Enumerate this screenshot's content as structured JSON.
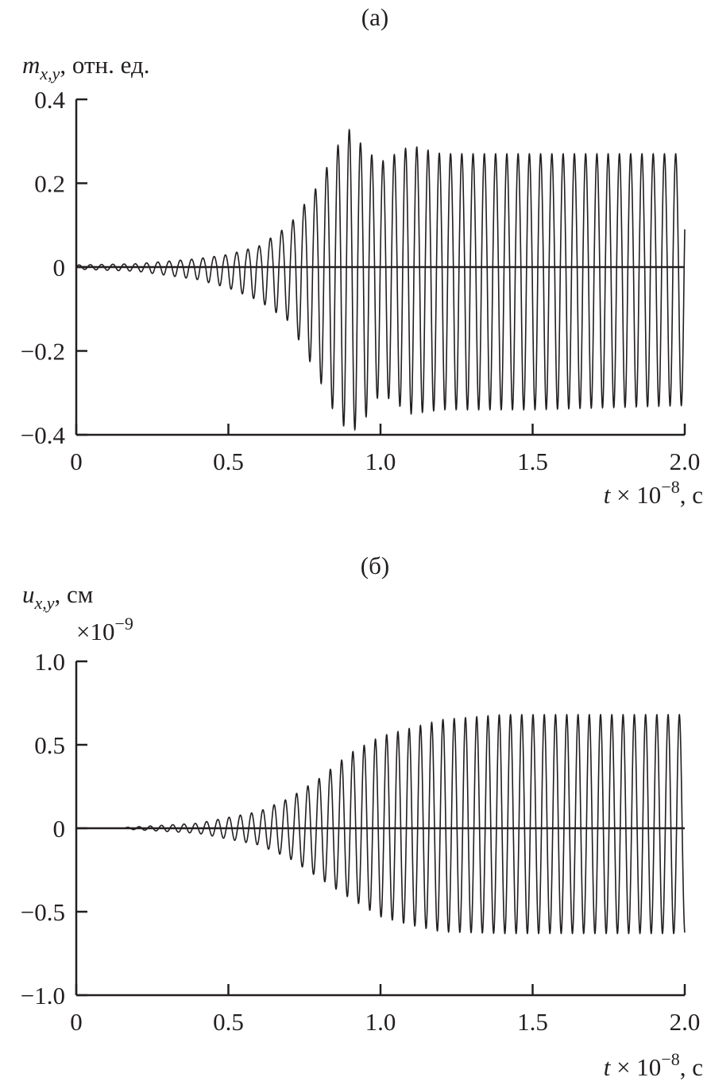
{
  "chart_data": [
    {
      "type": "line",
      "panel_label": "(а)",
      "ylabel": {
        "symbol": "m",
        "subscript": "x,y",
        "unit": ", отн. ед."
      },
      "xlabel": {
        "symbol": "t",
        "text": " × 10",
        "exponent": "−8",
        "unit": ", с"
      },
      "xlim": [
        0,
        2.0
      ],
      "ylim": [
        -0.4,
        0.4
      ],
      "xticks": [
        "0",
        "0.5",
        "1.0",
        "1.5",
        "2.0"
      ],
      "xtick_values": [
        0,
        0.5,
        1.0,
        1.5,
        2.0
      ],
      "yticks": [
        "0.4",
        "0.2",
        "0",
        "−0.2",
        "−0.4"
      ],
      "ytick_values": [
        0.4,
        0.2,
        0,
        -0.2,
        -0.4
      ],
      "grid": false,
      "zero_line": true,
      "oscillation_period": 0.037,
      "start_t": 0,
      "envelope_upper": [
        [
          0,
          0.005
        ],
        [
          0.2,
          0.008
        ],
        [
          0.4,
          0.02
        ],
        [
          0.5,
          0.03
        ],
        [
          0.6,
          0.05
        ],
        [
          0.7,
          0.1
        ],
        [
          0.8,
          0.2
        ],
        [
          0.85,
          0.28
        ],
        [
          0.9,
          0.33
        ],
        [
          0.95,
          0.28
        ],
        [
          1.0,
          0.25
        ],
        [
          1.1,
          0.29
        ],
        [
          1.2,
          0.27
        ],
        [
          1.5,
          0.27
        ],
        [
          2.0,
          0.27
        ]
      ],
      "envelope_lower": [
        [
          0,
          -0.005
        ],
        [
          0.2,
          -0.01
        ],
        [
          0.4,
          -0.03
        ],
        [
          0.5,
          -0.05
        ],
        [
          0.6,
          -0.08
        ],
        [
          0.7,
          -0.13
        ],
        [
          0.8,
          -0.27
        ],
        [
          0.85,
          -0.35
        ],
        [
          0.9,
          -0.4
        ],
        [
          0.95,
          -0.36
        ],
        [
          1.0,
          -0.3
        ],
        [
          1.1,
          -0.35
        ],
        [
          1.2,
          -0.34
        ],
        [
          1.5,
          -0.34
        ],
        [
          2.0,
          -0.33
        ]
      ]
    },
    {
      "type": "line",
      "panel_label": "(б)",
      "ylabel": {
        "symbol": "u",
        "subscript": "x,y",
        "unit": ", см"
      },
      "yscale_note": {
        "text": "×10",
        "exponent": "−9"
      },
      "xlabel": {
        "symbol": "t",
        "text": " × 10",
        "exponent": "−8",
        "unit": ", с"
      },
      "xlim": [
        0,
        2.0
      ],
      "ylim": [
        -1.0,
        1.0
      ],
      "xticks": [
        "0",
        "0.5",
        "1.0",
        "1.5",
        "2.0"
      ],
      "xtick_values": [
        0,
        0.5,
        1.0,
        1.5,
        2.0
      ],
      "yticks": [
        "1.0",
        "0.5",
        "0",
        "−0.5",
        "−1.0"
      ],
      "ytick_values": [
        1.0,
        0.5,
        0,
        -0.5,
        -1.0
      ],
      "grid": false,
      "zero_line": true,
      "oscillation_period": 0.037,
      "start_t": 0.16,
      "envelope_upper": [
        [
          0.16,
          0.005
        ],
        [
          0.4,
          0.03
        ],
        [
          0.6,
          0.1
        ],
        [
          0.7,
          0.18
        ],
        [
          0.8,
          0.3
        ],
        [
          0.9,
          0.45
        ],
        [
          1.0,
          0.55
        ],
        [
          1.1,
          0.6
        ],
        [
          1.2,
          0.65
        ],
        [
          1.4,
          0.68
        ],
        [
          2.0,
          0.68
        ]
      ],
      "envelope_lower": [
        [
          0.16,
          -0.005
        ],
        [
          0.4,
          -0.03
        ],
        [
          0.6,
          -0.1
        ],
        [
          0.7,
          -0.18
        ],
        [
          0.8,
          -0.3
        ],
        [
          0.9,
          -0.42
        ],
        [
          1.0,
          -0.53
        ],
        [
          1.1,
          -0.58
        ],
        [
          1.2,
          -0.62
        ],
        [
          1.4,
          -0.63
        ],
        [
          2.0,
          -0.63
        ]
      ]
    }
  ]
}
